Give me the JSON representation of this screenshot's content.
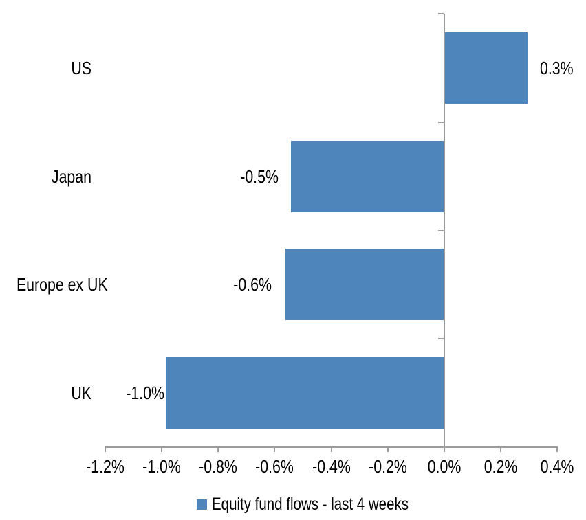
{
  "chart_data": {
    "type": "bar",
    "orientation": "horizontal",
    "title": "",
    "xlabel": "",
    "ylabel": "",
    "categories": [
      "US",
      "Japan",
      "Europe ex UK",
      "UK"
    ],
    "series": [
      {
        "name": "Equity fund flows - last 4 weeks",
        "values": [
          0.3,
          -0.5,
          -0.6,
          -1.0
        ],
        "data_labels": [
          "0.3%",
          "-0.5%",
          "-0.6%",
          "-1.0%"
        ],
        "plot_values": [
          0.295,
          -0.542,
          -0.562,
          -0.985
        ],
        "unit": "%",
        "color": "#4E86BC"
      }
    ],
    "xlim": [
      -1.2,
      0.4
    ],
    "x_tick_values": [
      -1.2,
      -1.0,
      -0.8,
      -0.6,
      -0.4,
      -0.2,
      0.0,
      0.2,
      0.4
    ],
    "x_tick_labels": [
      "-1.2%",
      "-1.0%",
      "-0.8%",
      "-0.6%",
      "-0.4%",
      "-0.2%",
      "0.0%",
      "0.2%",
      "0.4%"
    ],
    "grid": false,
    "legend": {
      "position": "bottom",
      "label": "Equity fund flows - last 4 weeks"
    },
    "colors": {
      "bar": "#4E86BC",
      "axis": "#9B9B9B",
      "text": "#000000",
      "background": "#FFFFFF"
    }
  }
}
